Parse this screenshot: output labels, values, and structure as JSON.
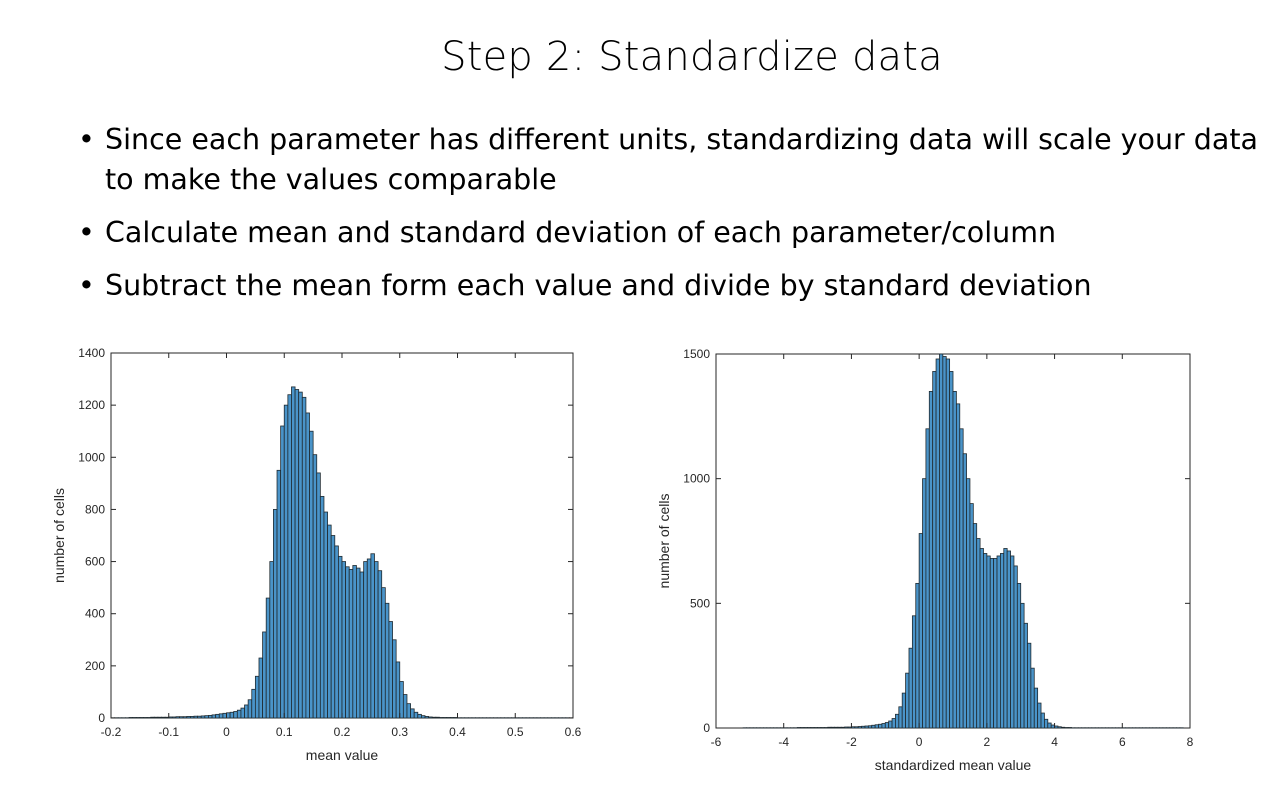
{
  "slide": {
    "title": "Step 2: Standardize data",
    "bullets": [
      "Since each parameter has different units, standardizing data will scale your data to make the values comparable",
      "Calculate mean and standard deviation of each parameter/column",
      "Subtract the mean form each value and divide by standard deviation"
    ]
  },
  "colors": {
    "bar_fill": "#4a94c9",
    "bar_edge": "#1f2a30",
    "axis": "#262626"
  },
  "chart_data": [
    {
      "type": "bar",
      "xlabel": "mean value",
      "ylabel": "number of cells",
      "xlim": [
        -0.2,
        0.6
      ],
      "ylim": [
        0,
        1400
      ],
      "xticks": [
        -0.2,
        -0.1,
        0,
        0.1,
        0.2,
        0.3,
        0.4,
        0.5,
        0.6
      ],
      "xtick_labels": [
        "-0.2",
        "-0.1",
        "0",
        "0.1",
        "0.2",
        "0.3",
        "0.4",
        "0.5",
        "0.6"
      ],
      "yticks": [
        0,
        200,
        400,
        600,
        800,
        1000,
        1200,
        1400
      ],
      "ytick_labels": [
        "0",
        "200",
        "400",
        "600",
        "800",
        "1000",
        "1200",
        "1400"
      ],
      "bin_start": -0.2,
      "bin_width": 0.00625,
      "values": [
        1,
        1,
        1,
        1,
        1,
        2,
        2,
        2,
        2,
        2,
        2,
        3,
        3,
        3,
        3,
        3,
        4,
        4,
        5,
        5,
        5,
        6,
        6,
        7,
        7,
        8,
        9,
        10,
        12,
        14,
        16,
        18,
        20,
        22,
        25,
        30,
        38,
        50,
        70,
        110,
        160,
        230,
        330,
        460,
        600,
        800,
        950,
        1120,
        1200,
        1240,
        1270,
        1260,
        1250,
        1230,
        1170,
        1100,
        1010,
        940,
        850,
        790,
        740,
        700,
        660,
        620,
        600,
        580,
        570,
        585,
        575,
        560,
        600,
        610,
        630,
        600,
        565,
        500,
        440,
        370,
        300,
        215,
        140,
        90,
        55,
        35,
        22,
        14,
        9,
        6,
        4,
        3,
        3,
        2,
        2,
        2,
        2,
        2,
        1,
        1,
        1,
        1,
        1,
        1,
        1,
        1,
        1,
        1,
        1,
        1,
        1,
        1,
        1,
        1,
        1,
        1,
        1,
        1,
        1,
        1,
        1,
        1,
        1,
        1,
        1,
        1,
        1,
        1,
        1,
        1
      ]
    },
    {
      "type": "bar",
      "xlabel": "standardized mean value",
      "ylabel": "number of cells",
      "xlim": [
        -6,
        8
      ],
      "ylim": [
        0,
        1500
      ],
      "xticks": [
        -6,
        -4,
        -2,
        0,
        2,
        4,
        6,
        8
      ],
      "xtick_labels": [
        "-6",
        "-4",
        "-2",
        "0",
        "2",
        "4",
        "6",
        "8"
      ],
      "yticks": [
        0,
        500,
        1000,
        1500
      ],
      "ytick_labels": [
        "0",
        "500",
        "1000",
        "1500"
      ],
      "bin_start": -5.2,
      "bin_width": 0.1,
      "values": [
        1,
        1,
        1,
        1,
        1,
        1,
        1,
        1,
        1,
        1,
        1,
        1,
        1,
        1,
        1,
        1,
        2,
        2,
        2,
        2,
        2,
        2,
        2,
        2,
        2,
        3,
        3,
        3,
        3,
        3,
        4,
        4,
        5,
        5,
        6,
        7,
        8,
        9,
        11,
        13,
        15,
        18,
        22,
        28,
        38,
        55,
        85,
        140,
        220,
        320,
        450,
        580,
        780,
        1000,
        1200,
        1350,
        1430,
        1480,
        1500,
        1490,
        1480,
        1430,
        1350,
        1300,
        1200,
        1100,
        1000,
        900,
        820,
        760,
        720,
        700,
        690,
        680,
        680,
        690,
        700,
        720,
        710,
        690,
        650,
        580,
        500,
        420,
        340,
        240,
        160,
        100,
        60,
        35,
        20,
        12,
        8,
        5,
        3,
        2,
        2,
        1,
        1,
        1,
        1,
        1,
        1,
        1,
        1,
        1,
        1,
        1,
        1,
        1,
        1,
        1,
        1,
        1,
        1,
        1,
        1,
        1,
        1,
        1,
        1,
        1,
        1,
        1,
        1,
        1,
        1,
        1,
        1,
        1
      ]
    }
  ]
}
